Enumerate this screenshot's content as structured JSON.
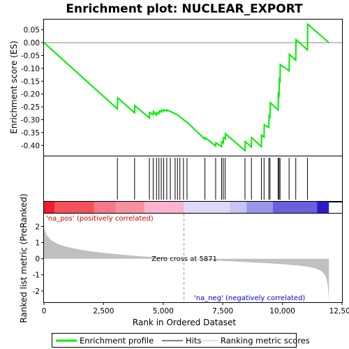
{
  "chart_data": {
    "type": "line",
    "title": "Enrichment plot: NUCLEAR_EXPORT",
    "es_panel": {
      "ylabel": "Enrichment score (ES)",
      "ylim": [
        -0.44,
        0.09
      ],
      "yticks": [
        0.05,
        0.0,
        -0.05,
        -0.1,
        -0.15,
        -0.2,
        -0.25,
        -0.3,
        -0.35,
        -0.4
      ],
      "ytick_labels": [
        "0.05",
        "0.00",
        "-0.05",
        "-0.10",
        "-0.15",
        "-0.20",
        "-0.25",
        "-0.30",
        "-0.35",
        "-0.40"
      ],
      "line_color": "#00ee00",
      "profile": [
        [
          0,
          0.0
        ],
        [
          3080,
          -0.258
        ],
        [
          3090,
          -0.215
        ],
        [
          3800,
          -0.273
        ],
        [
          3810,
          -0.245
        ],
        [
          4420,
          -0.293
        ],
        [
          4430,
          -0.272
        ],
        [
          4580,
          -0.28
        ],
        [
          4590,
          -0.268
        ],
        [
          4720,
          -0.282
        ],
        [
          4730,
          -0.272
        ],
        [
          4820,
          -0.277
        ],
        [
          4830,
          -0.266
        ],
        [
          4920,
          -0.27
        ],
        [
          4930,
          -0.262
        ],
        [
          5020,
          -0.266
        ],
        [
          5030,
          -0.262
        ],
        [
          5150,
          -0.266
        ],
        [
          5160,
          -0.262
        ],
        [
          5300,
          -0.268
        ],
        [
          5500,
          -0.277
        ],
        [
          5600,
          -0.281
        ],
        [
          5700,
          -0.289
        ],
        [
          5850,
          -0.3
        ],
        [
          6000,
          -0.31
        ],
        [
          6750,
          -0.376
        ],
        [
          6760,
          -0.37
        ],
        [
          7200,
          -0.402
        ],
        [
          7210,
          -0.39
        ],
        [
          7450,
          -0.405
        ],
        [
          7460,
          -0.385
        ],
        [
          7520,
          -0.39
        ],
        [
          7530,
          -0.37
        ],
        [
          7600,
          -0.375
        ],
        [
          7610,
          -0.355
        ],
        [
          8430,
          -0.42
        ],
        [
          8440,
          -0.385
        ],
        [
          8700,
          -0.406
        ],
        [
          8710,
          -0.37
        ],
        [
          9120,
          -0.405
        ],
        [
          9130,
          -0.36
        ],
        [
          9230,
          -0.368
        ],
        [
          9240,
          -0.32
        ],
        [
          9430,
          -0.33
        ],
        [
          9440,
          -0.285
        ],
        [
          9480,
          -0.29
        ],
        [
          9490,
          -0.234
        ],
        [
          9820,
          -0.262
        ],
        [
          9830,
          -0.2
        ],
        [
          9860,
          -0.205
        ],
        [
          9870,
          -0.145
        ],
        [
          9900,
          -0.15
        ],
        [
          9910,
          -0.085
        ],
        [
          10280,
          -0.11
        ],
        [
          10290,
          -0.045
        ],
        [
          10560,
          -0.068
        ],
        [
          10570,
          0.012
        ],
        [
          11050,
          -0.028
        ],
        [
          11060,
          0.072
        ],
        [
          11950,
          0.0
        ]
      ]
    },
    "hits": [
      3080,
      3800,
      4420,
      4580,
      4720,
      4820,
      4920,
      5020,
      5150,
      5300,
      5500,
      5600,
      5700,
      5850,
      6000,
      6750,
      7200,
      7450,
      7520,
      7600,
      8430,
      8700,
      9120,
      9230,
      9430,
      9480,
      9820,
      9860,
      9900,
      10280,
      10560,
      11050
    ],
    "rank_panel": {
      "ylabel": "Ranked list metric (PreRanked)",
      "ylim": [
        -2.7,
        2.8
      ],
      "yticks": [
        2,
        1,
        0,
        -1,
        -2
      ],
      "ytick_labels": [
        "2",
        "1",
        "0",
        "-1",
        "-2"
      ],
      "metric_curve": [
        [
          0,
          1.9
        ],
        [
          100,
          1.5
        ],
        [
          300,
          1.15
        ],
        [
          600,
          0.9
        ],
        [
          1000,
          0.72
        ],
        [
          1500,
          0.57
        ],
        [
          2000,
          0.45
        ],
        [
          2500,
          0.36
        ],
        [
          3000,
          0.29
        ],
        [
          3500,
          0.22
        ],
        [
          4000,
          0.16
        ],
        [
          4500,
          0.11
        ],
        [
          5000,
          0.07
        ],
        [
          5500,
          0.03
        ],
        [
          5871,
          0.0
        ],
        [
          6500,
          -0.05
        ],
        [
          7000,
          -0.09
        ],
        [
          7500,
          -0.13
        ],
        [
          8000,
          -0.17
        ],
        [
          8500,
          -0.21
        ],
        [
          9000,
          -0.25
        ],
        [
          9500,
          -0.29
        ],
        [
          10000,
          -0.34
        ],
        [
          10500,
          -0.4
        ],
        [
          11000,
          -0.48
        ],
        [
          11400,
          -0.6
        ],
        [
          11650,
          -0.78
        ],
        [
          11800,
          -1.05
        ],
        [
          11900,
          -1.6
        ],
        [
          11950,
          -2.6
        ]
      ],
      "zero_cross_label": "Zero cross at 5871",
      "zero_cross_rank": 5871,
      "pos_label": "'na_pos' (positively correlated)",
      "neg_label": "'na_neg' (negatively correlated)",
      "pos_color": "#cc0000",
      "neg_color": "#0000cc",
      "fill_color": "#c0c0c0"
    },
    "heat_bar": {
      "segments": [
        [
          0,
          450,
          "#ee1c2c"
        ],
        [
          450,
          2100,
          "#f2505a"
        ],
        [
          2100,
          3000,
          "#f6768a"
        ],
        [
          3000,
          4200,
          "#f7909c"
        ],
        [
          4200,
          5870,
          "#fab4d0"
        ],
        [
          5870,
          7800,
          "#dcd8f6"
        ],
        [
          7800,
          8500,
          "#c6c4f2"
        ],
        [
          8500,
          9600,
          "#9c96ea"
        ],
        [
          9600,
          11450,
          "#6860dc"
        ],
        [
          11450,
          11950,
          "#2c1cc8"
        ]
      ]
    },
    "xlabel": "Rank in Ordered Dataset",
    "xlim": [
      0,
      12500
    ],
    "xticks": [
      0,
      2500,
      5000,
      7500,
      10000,
      12500
    ],
    "xtick_labels": [
      "0",
      "2,500",
      "5,000",
      "7,500",
      "10,000",
      "12,500"
    ],
    "legend": {
      "position": "bottom",
      "items": [
        {
          "label": "Enrichment profile",
          "color": "#00ee00",
          "style": "thick-line"
        },
        {
          "label": "Hits",
          "color": "#000000",
          "style": "line"
        },
        {
          "label": "Ranking metric scores",
          "color": "#c0c0c0",
          "style": "line"
        }
      ]
    }
  }
}
